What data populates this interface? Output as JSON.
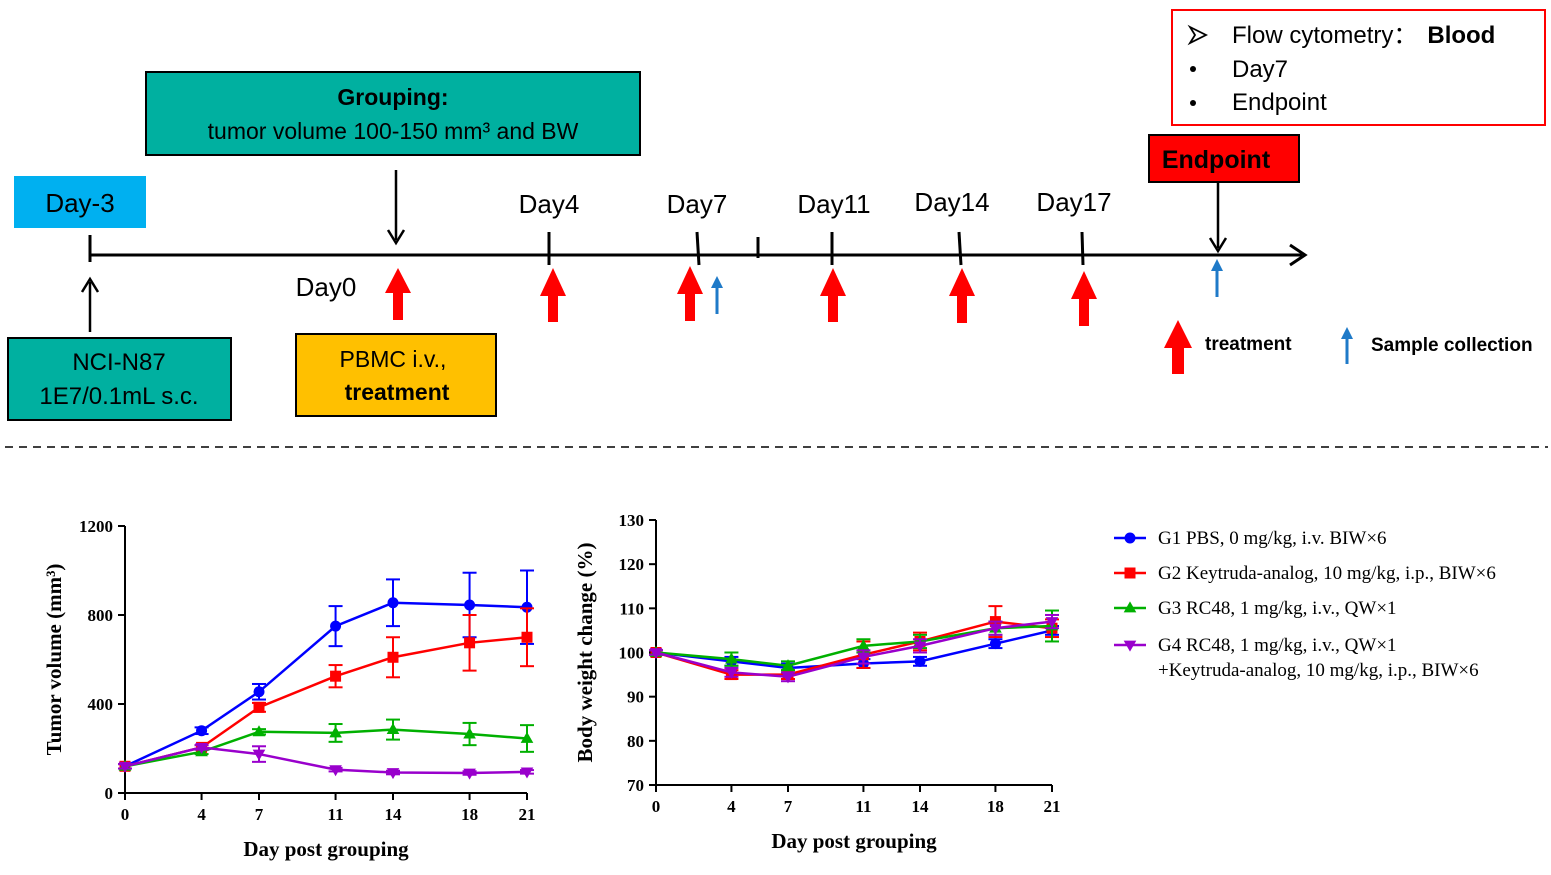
{
  "timeline": {
    "day_minus3": "Day-3",
    "day0": "Day0",
    "day_labels": [
      "Day4",
      "Day7",
      "Day11",
      "Day14",
      "Day17"
    ],
    "grouping_title": "Grouping:",
    "grouping_text": "tumor volume  100-150 mm³ and BW",
    "inoculation_line1": "NCI-N87",
    "inoculation_line2": "1E7/0.1mL s.c.",
    "pbmc_line1": "PBMC  i.v.,",
    "pbmc_line2": "treatment",
    "endpoint_label": "Endpoint",
    "flow_title": "Flow cytometry：",
    "flow_title_bold": "Blood",
    "flow_items": [
      "Day7",
      "Endpoint"
    ],
    "legend_treatment": "treatment",
    "legend_sample": "Sample collection",
    "colors": {
      "cyan_box": "#00b0f0",
      "teal_box": "#00b0a0",
      "yellow_box": "#ffc000",
      "endpoint_red": "#ff0000",
      "treatment_arrow": "#ff0000",
      "sample_arrow": "#1f7ac8"
    }
  },
  "chart_data": [
    {
      "type": "line",
      "xlabel": "Day post grouping",
      "ylabel": "Tumor volume (mm³)",
      "x": [
        0,
        4,
        7,
        11,
        14,
        18,
        21
      ],
      "xticks": [
        0,
        4,
        7,
        11,
        14,
        18,
        21
      ],
      "ylim": [
        0,
        1200
      ],
      "yticks": [
        0,
        400,
        800,
        1200
      ],
      "series": [
        {
          "name": "G1 PBS, 0 mg/kg, i.v. BIW×6",
          "color": "#0000ff",
          "marker": "circle",
          "values": [
            120,
            280,
            455,
            750,
            855,
            845,
            835
          ],
          "err": [
            10,
            15,
            35,
            90,
            105,
            145,
            165
          ]
        },
        {
          "name": "G2 Keytruda-analog, 10 mg/kg, i.p., BIW×6",
          "color": "#ff0000",
          "marker": "square",
          "values": [
            120,
            205,
            385,
            525,
            610,
            675,
            700
          ],
          "err": [
            10,
            10,
            20,
            50,
            90,
            125,
            130
          ]
        },
        {
          "name": "G3 RC48, 1 mg/kg, i.v., QW×1",
          "color": "#00b000",
          "marker": "triangle",
          "values": [
            120,
            185,
            275,
            270,
            285,
            265,
            245
          ],
          "err": [
            10,
            10,
            12,
            40,
            45,
            50,
            60
          ]
        },
        {
          "name": "G4 RC48, 1 mg/kg, i.v., QW×1",
          "name_line2": "+Keytruda-analog, 10 mg/kg, i.p., BIW×6",
          "color": "#9900cc",
          "marker": "triangle-down",
          "values": [
            120,
            205,
            175,
            105,
            92,
            90,
            95
          ],
          "err": [
            10,
            10,
            35,
            8,
            8,
            8,
            8
          ]
        }
      ]
    },
    {
      "type": "line",
      "xlabel": "Day post grouping",
      "ylabel": "Body weight change (%)",
      "x": [
        0,
        4,
        7,
        11,
        14,
        18,
        21
      ],
      "xticks": [
        0,
        4,
        7,
        11,
        14,
        18,
        21
      ],
      "ylim": [
        70,
        130
      ],
      "yticks": [
        70,
        80,
        90,
        100,
        110,
        120,
        130
      ],
      "series": [
        {
          "name": "G1 PBS, 0 mg/kg, i.v. BIW×6",
          "color": "#0000ff",
          "marker": "circle",
          "values": [
            100,
            98,
            96.5,
            97.5,
            98,
            102,
            105
          ],
          "err": [
            0.5,
            1,
            1,
            1,
            1,
            1,
            1
          ]
        },
        {
          "name": "G2 Keytruda-analog, 10 mg/kg, i.p., BIW×6",
          "color": "#ff0000",
          "marker": "square",
          "values": [
            100,
            95,
            95,
            99.5,
            102.5,
            107,
            105.5
          ],
          "err": [
            0.5,
            1,
            1,
            3,
            2,
            3.5,
            2
          ]
        },
        {
          "name": "G3 RC48, 1 mg/kg, i.v., QW×1",
          "color": "#00b000",
          "marker": "triangle",
          "values": [
            100,
            98.5,
            97,
            101.5,
            102.5,
            105.5,
            106
          ],
          "err": [
            0.5,
            1.5,
            1,
            1.5,
            1.5,
            1.5,
            3.5
          ]
        },
        {
          "name": "G4 RC48, 1 mg/kg, i.v., QW×1 +Keytruda-analog, 10 mg/kg, i.p., BIW×6",
          "color": "#9900cc",
          "marker": "triangle-down",
          "values": [
            100,
            95.5,
            94.5,
            99,
            101.5,
            105.5,
            107
          ],
          "err": [
            0.5,
            1,
            1,
            1.5,
            1.5,
            1.5,
            1.5
          ]
        }
      ]
    }
  ]
}
